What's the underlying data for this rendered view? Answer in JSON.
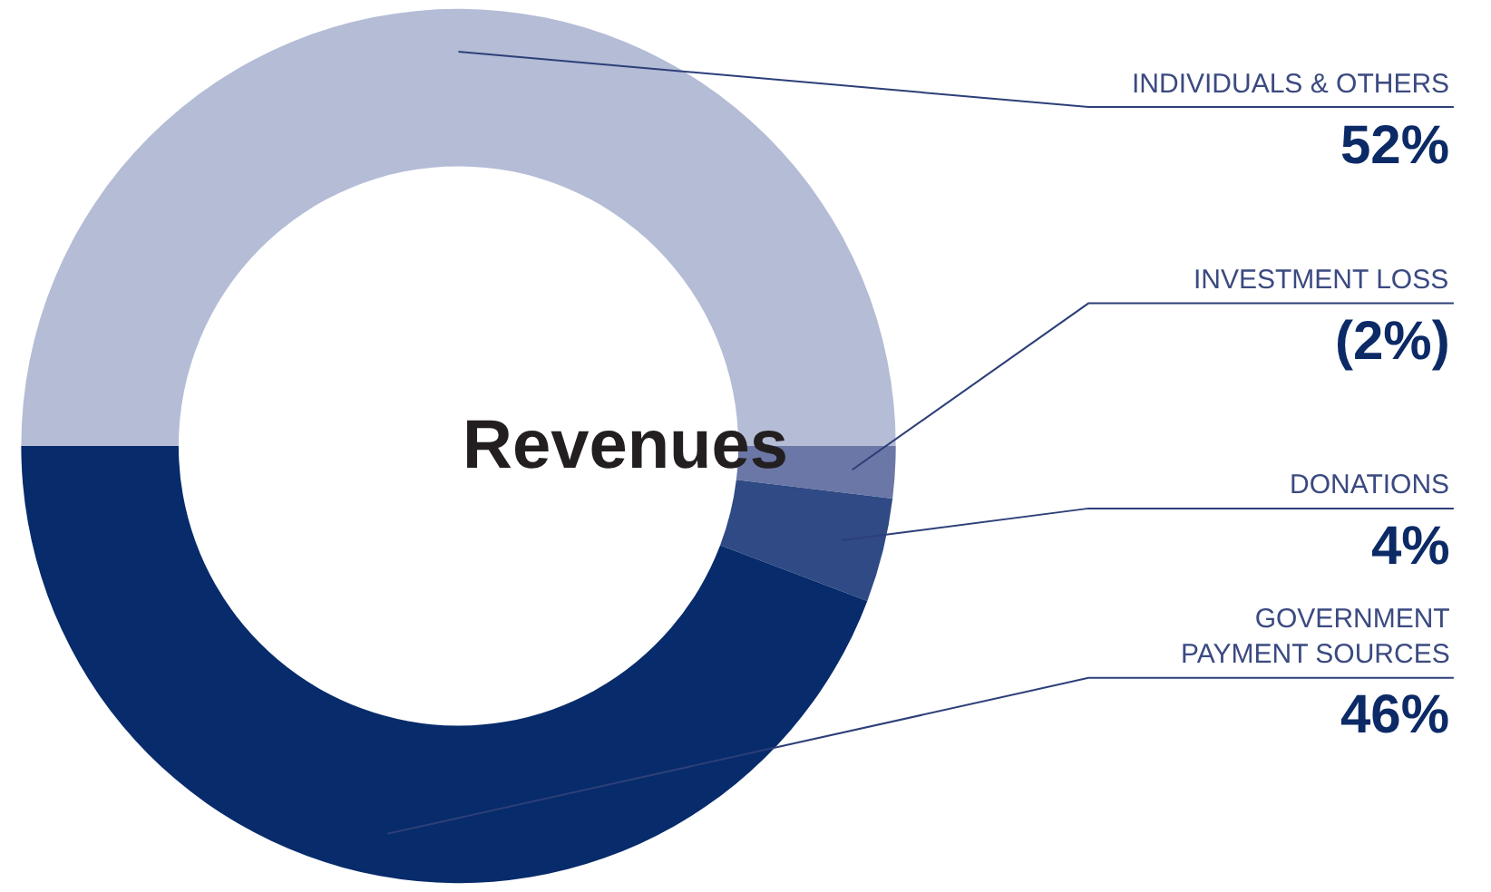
{
  "chart_data": {
    "type": "donut",
    "title": "Revenues",
    "categories": [
      "INDIVIDUALS & OTHERS",
      "INVESTMENT LOSS",
      "DONATIONS",
      "GOVERNMENT PAYMENT SOURCES"
    ],
    "values": [
      52,
      2,
      4,
      46
    ],
    "value_labels": [
      "52%",
      "(2%)",
      "4%",
      "46%"
    ],
    "colors": [
      "#b4bcd6",
      "#6b77a6",
      "#2f4a85",
      "#072b6b"
    ],
    "legend": false
  }
}
